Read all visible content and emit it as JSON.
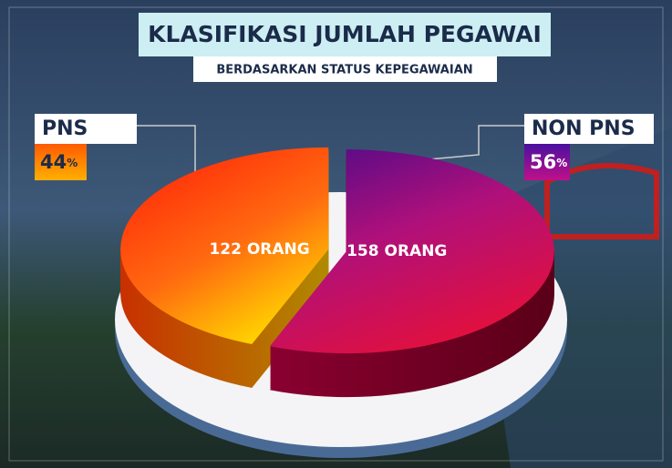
{
  "chart_data": {
    "type": "pie",
    "title": "KLASIFIKASI JUMLAH PEGAWAI",
    "subtitle": "BERDASARKAN STATUS KEPEGAWAIAN",
    "categories": [
      "PNS",
      "NON PNS"
    ],
    "values": [
      44,
      56
    ],
    "value_labels": [
      "44%",
      "56%"
    ],
    "counts": [
      122,
      158
    ],
    "count_labels": [
      "122 ORANG",
      "158 ORANG"
    ],
    "colors": [
      "#ff3c10",
      "#a0087a"
    ]
  }
}
